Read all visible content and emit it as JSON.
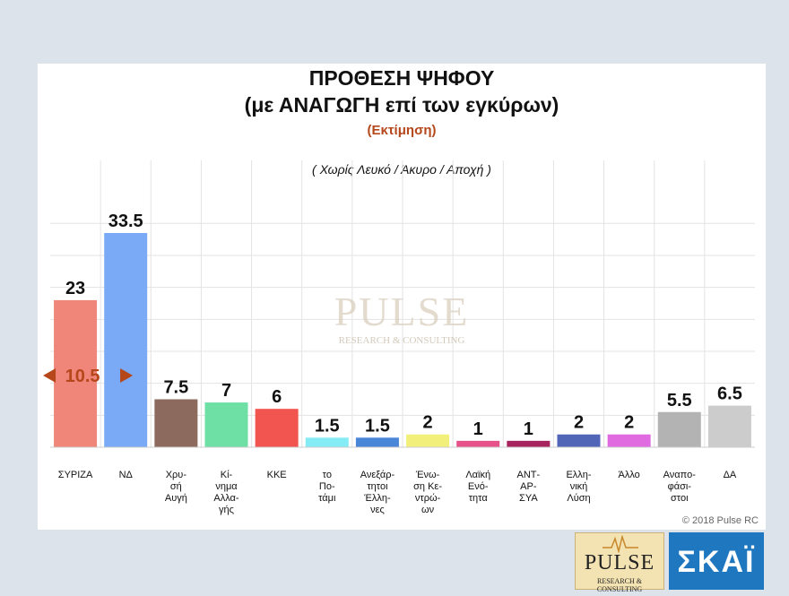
{
  "header": {
    "title_line1": "ΠΡΟΘΕΣΗ ΨΗΦΟΥ",
    "title_line2": "(με ΑΝΑΓΩΓΗ επί των εγκύρων)",
    "subtitle": "(Εκτίμηση)",
    "note": "( Χωρίς Λευκό / Άκυρο / Αποχή )"
  },
  "footer": {
    "copyright": "© 2018 Pulse RC"
  },
  "logos": {
    "pulse_name": "PULSE",
    "pulse_sub": "RESEARCH & CONSULTING",
    "skai_name": "ΣΚΑΪ"
  },
  "watermark": {
    "name": "PULSE",
    "sub": "RESEARCH & CONSULTING"
  },
  "chart_data": {
    "type": "bar",
    "title": "ΠΡΟΘΕΣΗ ΨΗΦΟΥ (με ΑΝΑΓΩΓΗ επί των εγκύρων)",
    "categories": [
      [
        "ΣΥΡΙΖΑ"
      ],
      [
        "ΝΔ"
      ],
      [
        "Χρυ-",
        "σή",
        "Αυγή"
      ],
      [
        "Κί-",
        "νημα",
        "Αλλα-",
        "γής"
      ],
      [
        "ΚΚΕ"
      ],
      [
        "το",
        "Πο-",
        "τάμι"
      ],
      [
        "Ανεξάρ-",
        "τητοι",
        "Έλλη-",
        "νες"
      ],
      [
        "Ένω-",
        "ση Κε-",
        "ντρώ-",
        "ων"
      ],
      [
        "Λαϊκή",
        "Ενό-",
        "τητα"
      ],
      [
        "ΑΝΤ-",
        "ΑΡ-",
        "ΣΥΑ"
      ],
      [
        "Ελλη-",
        "νική",
        "Λύση"
      ],
      [
        "Άλλο"
      ],
      [
        "Αναπο-",
        "φάσι-",
        "στοι"
      ],
      [
        "ΔΑ"
      ]
    ],
    "values": [
      23,
      33.5,
      7.5,
      7,
      6,
      1.5,
      1.5,
      2,
      1,
      1,
      2,
      2,
      5.5,
      6.5
    ],
    "labels": [
      "23",
      "33.5",
      "7.5",
      "7",
      "6",
      "1.5",
      "1.5",
      "2",
      "1",
      "1",
      "2",
      "2",
      "5.5",
      "6.5"
    ],
    "colors": [
      "#f0857a",
      "#7aa9f5",
      "#8c6b5e",
      "#6ee0a6",
      "#f25450",
      "#85ecf5",
      "#4a86d8",
      "#f2f07a",
      "#e8528a",
      "#a8245e",
      "#5266b8",
      "#e06ae0",
      "#b3b3b3",
      "#cccccc"
    ],
    "ylim": [
      0,
      35
    ],
    "grid": true,
    "annotation": {
      "text": "10.5",
      "color": "#b5471b"
    }
  }
}
